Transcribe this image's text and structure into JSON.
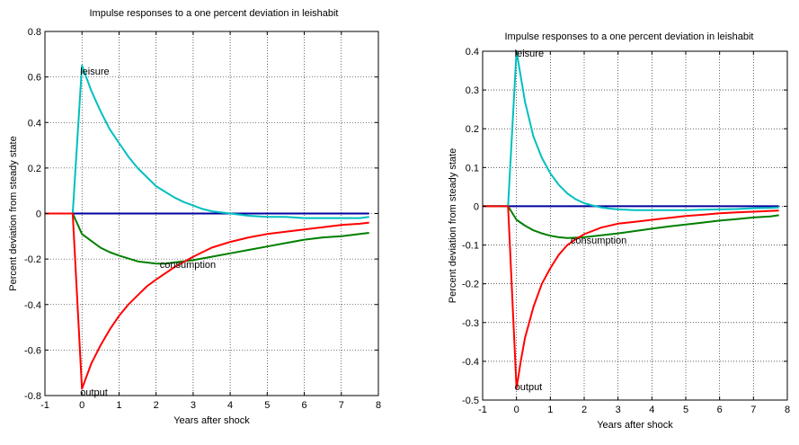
{
  "chart_data": [
    {
      "type": "line",
      "title": "Impulse responses to a one percent deviation in leishabit",
      "xlabel": "Years after shock",
      "ylabel": "Percent deviation from steady state",
      "xlim": [
        -1,
        8
      ],
      "ylim": [
        -0.8,
        0.8
      ],
      "xticks": [
        "-1",
        "0",
        "1",
        "2",
        "3",
        "4",
        "5",
        "6",
        "7",
        "8"
      ],
      "yticks": [
        "0.8",
        "0.6",
        "0.4",
        "0.2",
        "0",
        "-0.2",
        "-0.4",
        "-0.6",
        "-0.8"
      ],
      "grid": true,
      "series": [
        {
          "color": "#0000a0",
          "x": [
            -1,
            7.75
          ],
          "y": [
            0,
            0
          ]
        },
        {
          "name": "leisure",
          "color": "#00bfbf",
          "x": [
            -1,
            -0.25,
            0,
            0.25,
            0.5,
            0.75,
            1,
            1.25,
            1.5,
            1.75,
            2,
            2.25,
            2.5,
            2.75,
            3,
            3.25,
            3.5,
            3.75,
            4,
            4.5,
            5,
            5.5,
            6,
            6.5,
            7,
            7.5,
            7.75
          ],
          "y": [
            0,
            0,
            0.65,
            0.54,
            0.45,
            0.37,
            0.31,
            0.25,
            0.2,
            0.16,
            0.12,
            0.095,
            0.07,
            0.05,
            0.035,
            0.02,
            0.01,
            0.005,
            0,
            -0.01,
            -0.015,
            -0.015,
            -0.02,
            -0.02,
            -0.02,
            -0.02,
            -0.015
          ]
        },
        {
          "name": "consumption",
          "color": "#007f00",
          "x": [
            -1,
            -0.25,
            0,
            0.25,
            0.5,
            0.75,
            1,
            1.5,
            2,
            2.25,
            2.5,
            3,
            3.5,
            4,
            4.5,
            5,
            5.5,
            6,
            6.5,
            7,
            7.5,
            7.75
          ],
          "y": [
            0,
            0,
            -0.09,
            -0.12,
            -0.15,
            -0.17,
            -0.185,
            -0.21,
            -0.22,
            -0.22,
            -0.215,
            -0.205,
            -0.19,
            -0.175,
            -0.16,
            -0.145,
            -0.13,
            -0.115,
            -0.105,
            -0.1,
            -0.09,
            -0.085
          ]
        },
        {
          "name": "output",
          "color": "#ff0000",
          "x": [
            -1,
            -0.25,
            0,
            0.25,
            0.5,
            0.75,
            1,
            1.25,
            1.5,
            1.75,
            2,
            2.5,
            3,
            3.5,
            4,
            4.5,
            5,
            5.5,
            6,
            6.5,
            7,
            7.5,
            7.75
          ],
          "y": [
            0,
            0,
            -0.77,
            -0.66,
            -0.58,
            -0.51,
            -0.45,
            -0.4,
            -0.36,
            -0.32,
            -0.29,
            -0.235,
            -0.19,
            -0.15,
            -0.125,
            -0.105,
            -0.09,
            -0.08,
            -0.07,
            -0.06,
            -0.05,
            -0.045,
            -0.04
          ]
        }
      ],
      "annotations": [
        {
          "text": "leisure",
          "x": 0,
          "y": 0.65
        },
        {
          "text": "consumption",
          "x": 2.1,
          "y": -0.22
        },
        {
          "text": "output",
          "x": 0,
          "y": -0.8
        }
      ]
    },
    {
      "type": "line",
      "title": "Impulse responses to a one percent deviation in leishabit",
      "xlabel": "Years after shock",
      "ylabel": "Percent deviation from steady state",
      "xlim": [
        -1,
        8
      ],
      "ylim": [
        -0.5,
        0.4
      ],
      "xticks": [
        "-1",
        "0",
        "1",
        "2",
        "3",
        "4",
        "5",
        "6",
        "7",
        "8"
      ],
      "yticks": [
        "0.4",
        "0.3",
        "0.2",
        "0.1",
        "0",
        "-0.1",
        "-0.2",
        "-0.3",
        "-0.4",
        "-0.5"
      ],
      "grid": true,
      "series": [
        {
          "color": "#0000a0",
          "x": [
            -1,
            7.75
          ],
          "y": [
            0,
            0
          ]
        },
        {
          "name": "leisure",
          "color": "#00bfbf",
          "x": [
            -1,
            -0.25,
            0,
            0.25,
            0.5,
            0.75,
            1,
            1.25,
            1.5,
            1.75,
            2,
            2.25,
            2.5,
            2.75,
            3,
            3.5,
            4,
            4.5,
            5,
            5.5,
            6,
            6.5,
            7,
            7.5,
            7.75
          ],
          "y": [
            0,
            0,
            0.4,
            0.27,
            0.18,
            0.125,
            0.085,
            0.055,
            0.033,
            0.018,
            0.008,
            0.002,
            -0.003,
            -0.006,
            -0.008,
            -0.01,
            -0.01,
            -0.01,
            -0.01,
            -0.009,
            -0.008,
            -0.007,
            -0.005,
            -0.004,
            -0.003
          ]
        },
        {
          "name": "consumption",
          "color": "#007f00",
          "x": [
            -1,
            -0.25,
            0,
            0.25,
            0.5,
            0.75,
            1,
            1.25,
            1.5,
            2,
            2.5,
            3,
            3.5,
            4,
            4.5,
            5,
            5.5,
            6,
            6.5,
            7,
            7.5,
            7.75
          ],
          "y": [
            0,
            0,
            -0.035,
            -0.05,
            -0.062,
            -0.07,
            -0.076,
            -0.08,
            -0.082,
            -0.08,
            -0.075,
            -0.07,
            -0.064,
            -0.058,
            -0.052,
            -0.047,
            -0.042,
            -0.037,
            -0.033,
            -0.029,
            -0.026,
            -0.023
          ]
        },
        {
          "name": "output",
          "color": "#ff0000",
          "x": [
            -1,
            -0.25,
            0,
            0.125,
            0.25,
            0.375,
            0.5,
            0.75,
            1,
            1.25,
            1.5,
            1.75,
            2,
            2.5,
            3,
            3.5,
            4,
            4.5,
            5,
            5.5,
            6,
            6.5,
            7,
            7.5,
            7.75
          ],
          "y": [
            0,
            0,
            -0.47,
            -0.4,
            -0.34,
            -0.3,
            -0.26,
            -0.2,
            -0.16,
            -0.125,
            -0.1,
            -0.085,
            -0.072,
            -0.055,
            -0.045,
            -0.04,
            -0.035,
            -0.03,
            -0.025,
            -0.022,
            -0.018,
            -0.016,
            -0.014,
            -0.012,
            -0.011
          ]
        }
      ],
      "annotations": [
        {
          "text": "leisure",
          "x": 0,
          "y": 0.4
        },
        {
          "text": "consumption",
          "x": 1.6,
          "y": -0.085
        },
        {
          "text": "output",
          "x": 0,
          "y": -0.47
        }
      ]
    }
  ]
}
